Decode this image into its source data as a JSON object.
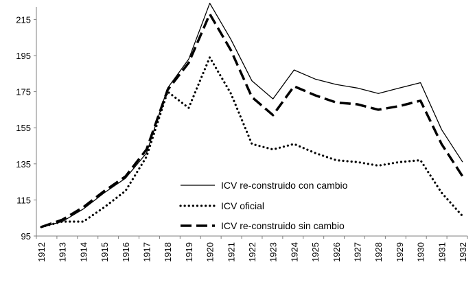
{
  "chart_data": {
    "type": "line",
    "title": "",
    "xlabel": "",
    "ylabel": "",
    "x": [
      "1912",
      "1913",
      "1914",
      "1915",
      "1916",
      "1917",
      "1918",
      "1919",
      "1920",
      "1921",
      "1922",
      "1923",
      "1924",
      "1925",
      "1926",
      "1927",
      "1928",
      "1929",
      "1930",
      "1931",
      "1932"
    ],
    "ylim": [
      95,
      222
    ],
    "yticks": [
      95,
      115,
      135,
      155,
      175,
      195,
      215
    ],
    "grid": false,
    "legend_position": "bottom-center",
    "series": [
      {
        "name": "ICV re-construido con cambio",
        "style": "solid-thin",
        "color": "#000000",
        "values": [
          100,
          103,
          110,
          119,
          127,
          141,
          177,
          193,
          224,
          204,
          181,
          171,
          187,
          182,
          179,
          177,
          174,
          177,
          180,
          154,
          136
        ]
      },
      {
        "name": "ICV oficial",
        "style": "dotted",
        "color": "#000000",
        "values": [
          100,
          103,
          103,
          111,
          120,
          139,
          175,
          166,
          194,
          174,
          146,
          143,
          146,
          141,
          137,
          136,
          134,
          136,
          137,
          119,
          106
        ]
      },
      {
        "name": "ICV re-construido sin cambio",
        "style": "dashed",
        "color": "#000000",
        "values": [
          100,
          104,
          111,
          120,
          128,
          143,
          176,
          191,
          218,
          198,
          172,
          162,
          178,
          173,
          169,
          168,
          165,
          167,
          170,
          146,
          128
        ]
      }
    ]
  }
}
